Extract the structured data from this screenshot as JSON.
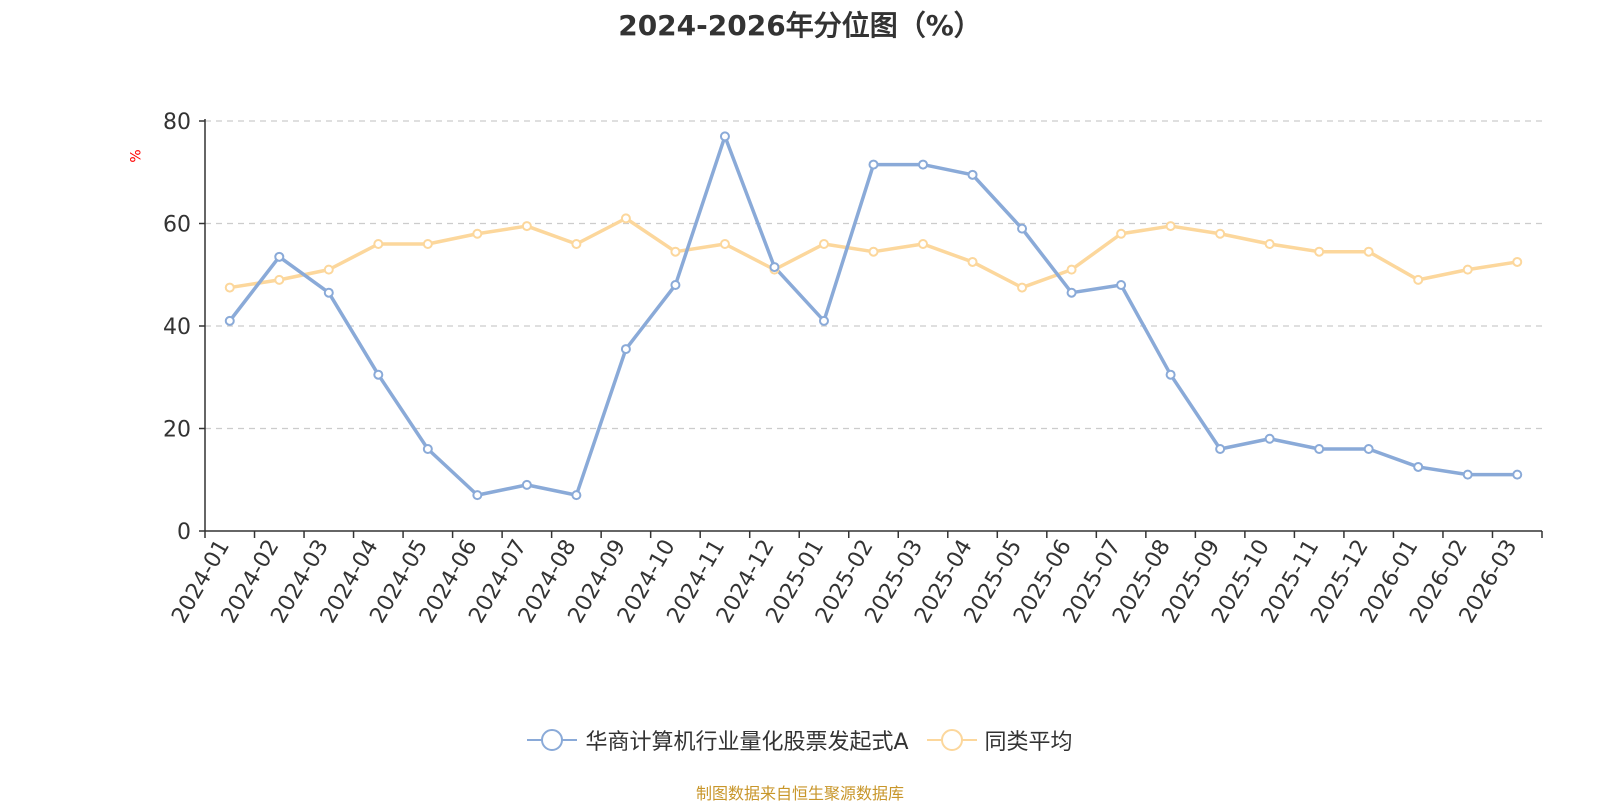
{
  "chart_data": {
    "type": "line",
    "title": "2024-2026年分位图（%）",
    "ylabel": "%",
    "ylim": [
      0,
      80
    ],
    "yticks": [
      0,
      20,
      40,
      60,
      80
    ],
    "grid": true,
    "legend_position": "bottom",
    "categories": [
      "2024-01",
      "2024-02",
      "2024-03",
      "2024-04",
      "2024-05",
      "2024-06",
      "2024-07",
      "2024-08",
      "2024-09",
      "2024-10",
      "2024-11",
      "2024-12",
      "2025-01",
      "2025-02",
      "2025-03",
      "2025-04",
      "2025-05",
      "2025-06",
      "2025-07",
      "2025-08",
      "2025-09",
      "2025-10",
      "2025-11",
      "2025-12",
      "2026-01",
      "2026-02",
      "2026-03"
    ],
    "series": [
      {
        "name": "华商计算机行业量化股票发起式A",
        "color": "#8aaad8",
        "values": [
          41,
          53.5,
          46.5,
          30.5,
          16,
          7,
          9,
          7,
          35.5,
          48,
          77,
          51.5,
          41,
          71.5,
          71.5,
          69.5,
          59,
          46.5,
          48,
          30.5,
          16,
          18,
          16,
          16,
          12.5,
          11,
          11
        ]
      },
      {
        "name": "同类平均",
        "color": "#fcd79c",
        "values": [
          47.5,
          49,
          51,
          56,
          56,
          58,
          59.5,
          56,
          61,
          54.5,
          56,
          51,
          56,
          54.5,
          56,
          52.5,
          47.5,
          51,
          58,
          59.5,
          58,
          56,
          54.5,
          54.5,
          49,
          51,
          52.5
        ]
      }
    ]
  },
  "legend": {
    "items": [
      "华商计算机行业量化股票发起式A",
      "同类平均"
    ]
  },
  "footer": {
    "source": "制图数据来自恒生聚源数据库"
  }
}
